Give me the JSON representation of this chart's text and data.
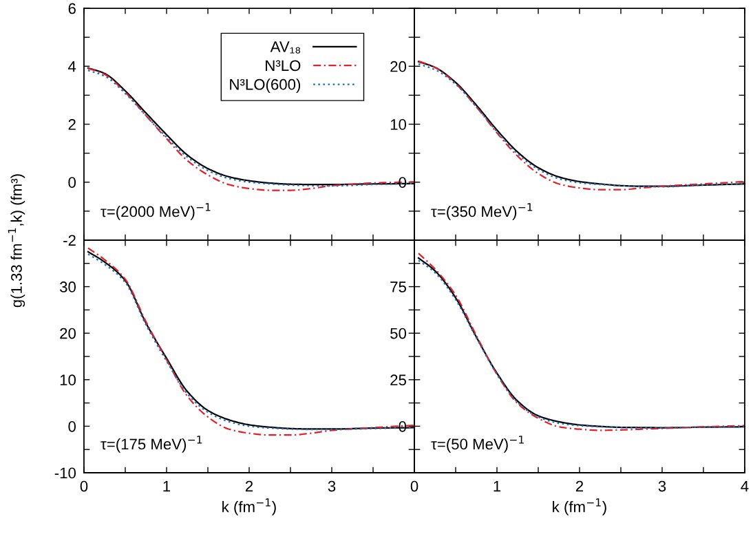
{
  "chart_data": [
    {
      "type": "line",
      "ylabel": "g(1.33 fm$^{−1}$,k) (fm³)",
      "annotations": [
        "τ=(2000 MeV)$^{−1}$"
      ],
      "legend": "top right",
      "tick_labels": "y",
      "x": [
        0.05,
        0.25,
        0.5,
        0.75,
        1,
        1.25,
        1.5,
        1.75,
        2,
        2.25,
        2.5,
        2.75,
        3,
        3.5,
        4
      ],
      "xlim": [
        0,
        4
      ],
      "xticks": [
        {
          "value": 0,
          "label": null
        },
        {
          "value": 0.5,
          "label": null
        },
        {
          "value": 1,
          "label": null
        },
        {
          "value": 1.5,
          "label": null
        },
        {
          "value": 2,
          "label": null
        },
        {
          "value": 2.5,
          "label": null
        },
        {
          "value": 3,
          "label": null
        },
        {
          "value": 3.5,
          "label": null
        },
        {
          "value": 4,
          "label": null
        }
      ],
      "ylim": [
        -2,
        6
      ],
      "yticks": [
        -2,
        {
          "value": -1,
          "label": null
        },
        0,
        {
          "value": 1,
          "label": null
        },
        2,
        {
          "value": 3,
          "label": null
        },
        4,
        {
          "value": 5,
          "label": null
        },
        6
      ],
      "series": [
        {
          "name": "AV₁₈",
          "color": "#000000",
          "line_style": "solid",
          "values": [
            3.94,
            3.75,
            3.15,
            2.39,
            1.64,
            0.94,
            0.47,
            0.19,
            0.05,
            -0.03,
            -0.07,
            -0.08,
            -0.08,
            -0.06,
            -0.05
          ]
        },
        {
          "name": "N³LO",
          "color": "#e0202a",
          "line_style": "dashdot",
          "values": [
            3.93,
            3.72,
            3.1,
            2.3,
            1.5,
            0.75,
            0.25,
            -0.08,
            -0.22,
            -0.28,
            -0.28,
            -0.22,
            -0.12,
            -0.03,
            0.01
          ]
        },
        {
          "name": "N³LO(600)",
          "color": "#1a6fc0",
          "line_style": "dotted",
          "values": [
            3.86,
            3.66,
            3.06,
            2.3,
            1.55,
            0.87,
            0.4,
            0.13,
            0.0,
            -0.06,
            -0.1,
            -0.12,
            -0.13,
            -0.08,
            -0.05
          ]
        }
      ]
    },
    {
      "type": "line",
      "annotations": [
        "τ=(350 MeV)$^{−1}$"
      ],
      "tick_labels": "y",
      "x": [
        0.05,
        0.25,
        0.5,
        0.75,
        1,
        1.25,
        1.5,
        1.75,
        2,
        2.25,
        2.5,
        2.75,
        3,
        3.5,
        4
      ],
      "xlim": [
        0,
        4
      ],
      "xticks": [
        {
          "value": 0,
          "label": null
        },
        {
          "value": 0.5,
          "label": null
        },
        {
          "value": 1,
          "label": null
        },
        {
          "value": 1.5,
          "label": null
        },
        {
          "value": 2,
          "label": null
        },
        {
          "value": 2.5,
          "label": null
        },
        {
          "value": 3,
          "label": null
        },
        {
          "value": 3.5,
          "label": null
        },
        {
          "value": 4,
          "label": null
        }
      ],
      "ylim": [
        -10,
        30
      ],
      "yticks": [
        {
          "value": -10,
          "label": null
        },
        {
          "value": -5,
          "label": null
        },
        0,
        {
          "value": 5,
          "label": null
        },
        10,
        {
          "value": 15,
          "label": null
        },
        20,
        {
          "value": 25,
          "label": null
        },
        {
          "value": 30,
          "label": null
        }
      ],
      "series": [
        {
          "color": "#000000",
          "line_style": "solid",
          "values": [
            20.8,
            19.8,
            17.2,
            13.3,
            9.0,
            5.2,
            2.5,
            0.9,
            0.1,
            -0.3,
            -0.6,
            -0.7,
            -0.7,
            -0.5,
            -0.3
          ]
        },
        {
          "color": "#e0202a",
          "line_style": "dashdot",
          "values": [
            20.9,
            19.8,
            17.0,
            13.0,
            8.5,
            4.5,
            1.5,
            -0.3,
            -1.0,
            -1.3,
            -1.3,
            -1.0,
            -0.7,
            -0.3,
            0.1
          ]
        },
        {
          "color": "#1a6fc0",
          "line_style": "dotted",
          "values": [
            20.4,
            19.4,
            16.9,
            13.0,
            8.7,
            4.9,
            2.2,
            0.6,
            -0.1,
            -0.4,
            -0.6,
            -0.7,
            -0.8,
            -0.5,
            -0.3
          ]
        }
      ]
    },
    {
      "type": "line",
      "xlabel": "k (fm$^{−1}$)",
      "annotations": [
        "τ=(175 MeV)$^{−1}$"
      ],
      "x": [
        0.05,
        0.25,
        0.5,
        0.75,
        1,
        1.25,
        1.5,
        1.75,
        2,
        2.25,
        2.5,
        2.75,
        3,
        3.5,
        4
      ],
      "xlim": [
        0,
        4
      ],
      "xticks": [
        0,
        {
          "value": 0.5,
          "label": null
        },
        1,
        {
          "value": 1.5,
          "label": null
        },
        2,
        {
          "value": 2.5,
          "label": null
        },
        3,
        {
          "value": 3.5,
          "label": null
        },
        {
          "value": 4,
          "label": null
        }
      ],
      "ylim": [
        -10,
        40
      ],
      "yticks": [
        -10,
        {
          "value": -5,
          "label": null
        },
        0,
        {
          "value": 5,
          "label": null
        },
        10,
        {
          "value": 15,
          "label": null
        },
        20,
        {
          "value": 25,
          "label": null
        },
        30,
        {
          "value": 35,
          "label": null
        },
        {
          "value": 40,
          "label": null
        }
      ],
      "series": [
        {
          "color": "#000000",
          "line_style": "solid",
          "values": [
            37.5,
            35.3,
            31.3,
            22.2,
            14.6,
            7.5,
            3.4,
            1.4,
            0.3,
            -0.2,
            -0.5,
            -0.6,
            -0.6,
            -0.4,
            -0.3
          ]
        },
        {
          "color": "#e0202a",
          "line_style": "dashdot",
          "values": [
            38.3,
            35.8,
            31.6,
            22.5,
            14.3,
            6.5,
            2.0,
            -0.6,
            -1.5,
            -1.9,
            -1.9,
            -1.5,
            -0.9,
            -0.3,
            0.2
          ]
        },
        {
          "color": "#1a6fc0",
          "line_style": "dotted",
          "values": [
            37.0,
            34.8,
            30.9,
            21.8,
            14.0,
            7.0,
            3.0,
            1.0,
            0.0,
            -0.4,
            -0.6,
            -0.7,
            -0.7,
            -0.5,
            -0.3
          ]
        }
      ]
    },
    {
      "type": "line",
      "xlabel": "k (fm$^{−1}$)",
      "annotations": [
        "τ=(50 MeV)$^{−1}$"
      ],
      "x": [
        0.05,
        0.25,
        0.5,
        0.75,
        1,
        1.25,
        1.5,
        1.75,
        2,
        2.25,
        2.5,
        2.75,
        3,
        3.5,
        4
      ],
      "xlim": [
        0,
        4
      ],
      "xticks": [
        0,
        {
          "value": 0.5,
          "label": null
        },
        1,
        {
          "value": 1.5,
          "label": null
        },
        2,
        {
          "value": 2.5,
          "label": null
        },
        3,
        {
          "value": 3.5,
          "label": null
        },
        4
      ],
      "ylim": [
        -25,
        100
      ],
      "yticks": [
        {
          "value": -25,
          "label": null
        },
        {
          "value": -12.5,
          "label": null
        },
        0,
        {
          "value": 12.5,
          "label": null
        },
        25,
        {
          "value": 37.5,
          "label": null
        },
        50,
        {
          "value": 62.5,
          "label": null
        },
        75,
        {
          "value": 87.5,
          "label": null
        },
        {
          "value": 100,
          "label": null
        }
      ],
      "series": [
        {
          "color": "#000000",
          "line_style": "solid",
          "values": [
            90.4,
            83.5,
            69,
            48,
            28.5,
            13.5,
            5.6,
            2.4,
            0.7,
            -0.1,
            -0.6,
            -0.7,
            -0.8,
            -0.5,
            -0.3
          ]
        },
        {
          "color": "#e0202a",
          "line_style": "dashdot",
          "values": [
            92.9,
            84.5,
            70.4,
            48.8,
            27.9,
            12.2,
            4.3,
            -0.3,
            -1.6,
            -2.2,
            -2.0,
            -1.6,
            -1.2,
            -0.3,
            0.3
          ]
        },
        {
          "color": "#1a6fc0",
          "line_style": "dotted",
          "values": [
            89.1,
            82.5,
            68,
            47.5,
            27.9,
            12.8,
            5.0,
            1.6,
            0.3,
            -0.3,
            -0.7,
            -0.8,
            -0.8,
            -0.5,
            -0.3
          ]
        }
      ]
    }
  ]
}
